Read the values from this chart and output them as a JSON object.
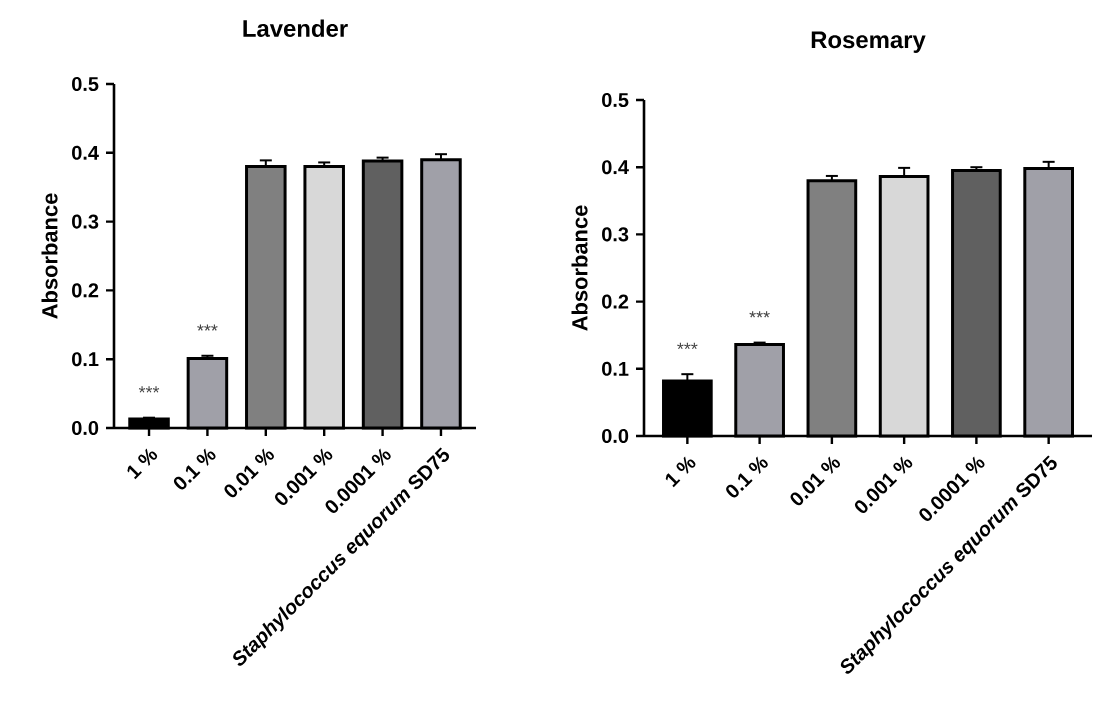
{
  "chart_data": [
    {
      "type": "bar",
      "title": "Lavender",
      "ylabel": "Absorbance",
      "categories": [
        "1 %",
        "0.1 %",
        "0.01 %",
        "0.001 %",
        "0.0001 %",
        "*Staphylococcus equorum* SD75"
      ],
      "values": [
        0.013,
        0.101,
        0.38,
        0.38,
        0.388,
        0.39
      ],
      "errors": [
        0.002,
        0.004,
        0.009,
        0.006,
        0.005,
        0.008
      ],
      "colors": [
        "#000000",
        "#a0a0a8",
        "#808080",
        "#d8d8d8",
        "#606060",
        "#a0a0a8"
      ],
      "ylim": [
        0,
        0.5
      ],
      "yticks": [
        {
          "value": 0,
          "label": "0.0"
        },
        0.1,
        0.2,
        0.3,
        0.4,
        0.5
      ],
      "annotations": [
        "***",
        "***"
      ]
    },
    {
      "type": "bar",
      "title": "Rosemary",
      "ylabel": "Absorbance",
      "categories": [
        "1 %",
        "0.1 %",
        "0.01 %",
        "0.001 %",
        "0.0001 %",
        "*Staphylococcus equorum* SD75"
      ],
      "values": [
        0.082,
        0.136,
        0.38,
        0.386,
        0.395,
        0.398
      ],
      "errors": [
        0.01,
        0.003,
        0.007,
        0.013,
        0.005,
        0.01
      ],
      "colors": [
        "#000000",
        "#a0a0a8",
        "#808080",
        "#d8d8d8",
        "#606060",
        "#a0a0a8"
      ],
      "ylim": [
        0,
        0.5
      ],
      "yticks": [
        {
          "value": 0,
          "label": "0.0"
        },
        0.1,
        0.2,
        0.3,
        0.4,
        0.5
      ],
      "annotations": [
        "***",
        "***"
      ]
    }
  ]
}
